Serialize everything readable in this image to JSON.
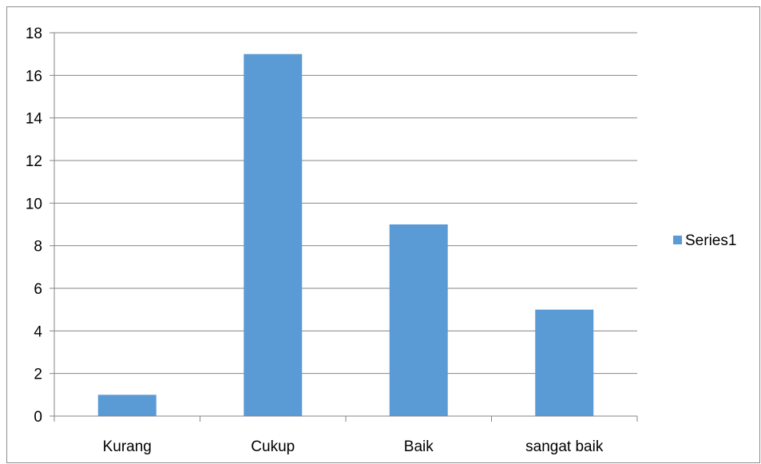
{
  "chart_data": {
    "type": "bar",
    "categories": [
      "Kurang",
      "Cukup",
      "Baik",
      "sangat baik"
    ],
    "series": [
      {
        "name": "Series1",
        "values": [
          1,
          17,
          9,
          5
        ],
        "color": "#5b9bd5"
      }
    ],
    "title": "",
    "xlabel": "",
    "ylabel": "",
    "ylim": [
      0,
      18
    ],
    "yticks": [
      "0",
      "2",
      "4",
      "6",
      "8",
      "10",
      "12",
      "14",
      "16",
      "18"
    ],
    "grid": true,
    "gridline_color": "#868686",
    "legend_position": "right"
  }
}
